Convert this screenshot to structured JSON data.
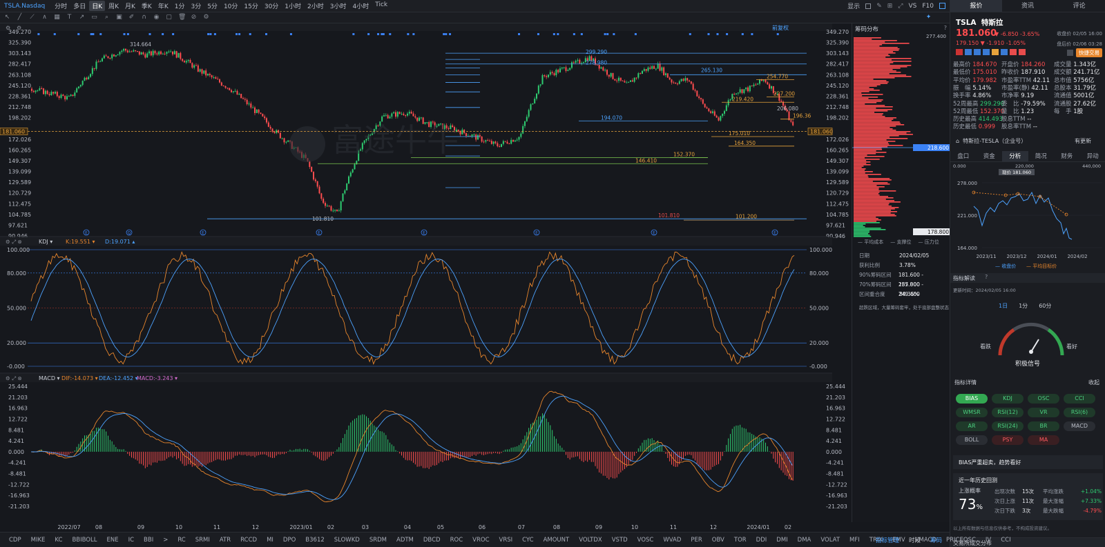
{
  "topbar": {
    "symbol": "TSLA.Nasdaq",
    "periods": [
      "分时",
      "多日",
      "日K",
      "周K",
      "月K",
      "季K",
      "年K",
      "1分",
      "3分",
      "5分",
      "10分",
      "15分",
      "30分",
      "1小时",
      "2小时",
      "3小时",
      "4小时",
      "Tick"
    ],
    "active_period": "日K",
    "right_items": [
      "显示",
      "VS",
      "F10"
    ]
  },
  "main_chart": {
    "adjust_label": "前复权",
    "y_ticks": [
      "349.270",
      "325.390",
      "303.143",
      "282.417",
      "263.108",
      "245.120",
      "228.361",
      "212.748",
      "198.202",
      "181.060",
      "172.026",
      "160.265",
      "149.307",
      "139.099",
      "129.589",
      "120.729",
      "112.475",
      "104.785",
      "97.621",
      "90.946"
    ],
    "current_price_tag": "181.060",
    "annotations": [
      "314.664",
      "101.810",
      "299.290",
      "278.980",
      "265.130",
      "254.770",
      "227.200",
      "219.420",
      "206.080",
      "196.36",
      "194.070",
      "175.010",
      "164.350",
      "152.370",
      "146.410",
      "101.810",
      "101.200"
    ],
    "watermark": "富途牛牛"
  },
  "kdj": {
    "name": "KDJ",
    "k_label": "K:19.551",
    "d_label": "D:19.071",
    "ticks": [
      "100.000",
      "80.000",
      "50.000",
      "20.000",
      "-0.000"
    ]
  },
  "macd": {
    "name": "MACD",
    "dif_label": "DIF:-14.073",
    "dea_label": "DEA:-12.452",
    "macd_label": "MACD:-3.243",
    "ticks": [
      "25.444",
      "21.203",
      "16.963",
      "12.722",
      "8.481",
      "4.241",
      "0.000",
      "-4.241",
      "-8.481",
      "-12.722",
      "-16.963",
      "-21.203"
    ]
  },
  "x_labels": [
    "2022/07",
    "08",
    "09",
    "10",
    "11",
    "12",
    "2023/01",
    "02",
    "03",
    "04",
    "05",
    "06",
    "07",
    "08",
    "09",
    "10",
    "11",
    "12",
    "2024/01",
    "02"
  ],
  "chip_dist": {
    "title": "筹码分布",
    "top_value": "277.400",
    "mid_tag": "218.600",
    "bottom_tag": "178.800",
    "legend": [
      "平均成本",
      "支撑位",
      "压力位"
    ],
    "rows": [
      {
        "k": "日期",
        "v": "2024/02/05"
      },
      {
        "k": "获利比例",
        "v": "3.78%"
      },
      {
        "k": "90%筹码区间",
        "v": "181.600 - 257.000"
      },
      {
        "k": "70%筹码区间",
        "v": "185.800 - 249.400"
      },
      {
        "k": "区间重合度",
        "v": "84.35%"
      }
    ],
    "note": "超跌区域，大量筹码套牢，处于底部盘整状态"
  },
  "right_panel": {
    "tabs": [
      "报价",
      "资讯",
      "评论"
    ],
    "ticker": "TSLA",
    "name": "特斯拉",
    "price": "181.060",
    "change": "-6.850",
    "change_pct": "-3.65%",
    "close_note": "收盘价 02/05 16:00",
    "after_price": "179.150",
    "after_change": "-1.910",
    "after_pct": "-1.05%",
    "after_note": "盘后价 02/06 03:28",
    "quick_trade": "快捷交易",
    "stats_left": [
      {
        "k": "最高价",
        "v": "184.670",
        "c": "red"
      },
      {
        "k": "最低价",
        "v": "175.010",
        "c": "red"
      },
      {
        "k": "平均价",
        "v": "179.982",
        "c": "red"
      },
      {
        "k": "振　幅",
        "v": "5.14%",
        "c": "white"
      },
      {
        "k": "换手率",
        "v": "4.86%",
        "c": "white"
      },
      {
        "k": "52周最高",
        "v": "299.290",
        "c": "green"
      },
      {
        "k": "52周最低",
        "v": "152.370",
        "c": "red"
      },
      {
        "k": "历史最高",
        "v": "414.493",
        "c": "green"
      },
      {
        "k": "历史最低",
        "v": "0.999",
        "c": "red"
      }
    ],
    "stats_mid": [
      {
        "k": "开盘价",
        "v": "184.260",
        "c": "red"
      },
      {
        "k": "昨收价",
        "v": "187.910",
        "c": "white"
      },
      {
        "k": "市盈率TTM",
        "v": "42.11",
        "c": "white"
      },
      {
        "k": "市盈率(静)",
        "v": "42.11",
        "c": "white"
      },
      {
        "k": "市净率",
        "v": "9.19",
        "c": "white"
      },
      {
        "k": "委　比",
        "v": "-79.59%",
        "c": "white"
      },
      {
        "k": "量　比",
        "v": "1.23",
        "c": "white"
      },
      {
        "k": "股息TTM",
        "v": "--",
        "c": "white"
      },
      {
        "k": "股息率TTM",
        "v": "--",
        "c": "white"
      }
    ],
    "stats_right": [
      {
        "k": "成交量",
        "v": "1.343亿"
      },
      {
        "k": "成交额",
        "v": "241.71亿"
      },
      {
        "k": "总市值",
        "v": "5756亿"
      },
      {
        "k": "总股本",
        "v": "31.79亿"
      },
      {
        "k": "流通值",
        "v": "5001亿"
      },
      {
        "k": "流通股",
        "v": "27.62亿"
      },
      {
        "k": "每　手",
        "v": "1股"
      }
    ],
    "company": "特斯拉-TESLA（企业号）",
    "company_update": "有更新",
    "subtabs": [
      "盘口",
      "资金",
      "分析",
      "简况",
      "财务",
      "异动"
    ],
    "analysis_chart": {
      "top_ticks": [
        "0.000",
        "220,000",
        "440,000"
      ],
      "now_label": "现价 181.060",
      "y_ticks": [
        "278.000",
        "221.000",
        "164.000"
      ],
      "x_ticks": [
        "2023/11",
        "2023/12",
        "2024/01",
        "2024/02"
      ],
      "legend": [
        "收盘价",
        "平均目标价"
      ]
    },
    "indicator_title": "指标解读",
    "update_time": "更新时间：2024/02/05 16:00",
    "periods": [
      "1日",
      "1分",
      "60分"
    ],
    "gauge_left": "看跌",
    "gauge_right": "看好",
    "signal": "积极信号",
    "detail_title": "指标详情",
    "collapse": "收起",
    "indicators": [
      [
        "BIAS",
        "KDJ",
        "OSC",
        "CCI"
      ],
      [
        "WMSR",
        "RSI(12)",
        "VR",
        "RSI(6)"
      ],
      [
        "AR",
        "RSI(24)",
        "BR",
        "MACD"
      ],
      [
        "BOLL",
        "PSY",
        "MA",
        ""
      ]
    ],
    "bias_note": "BIAS严重超卖，趋势看好",
    "backtest_title": "近一年历史回测",
    "up_prob_label": "上涨概率",
    "up_prob": "73",
    "backtest_rows": [
      {
        "k": "出现次数",
        "v": "15次",
        "k2": "平均涨跌",
        "v2": "+1.04%"
      },
      {
        "k": "次日上涨",
        "v": "11次",
        "k2": "最大涨幅",
        "v2": "+7.33%"
      },
      {
        "k": "次日下跌",
        "v": "3次",
        "k2": "最大跌幅",
        "v2": "-4.79%"
      }
    ],
    "disclaimer": "以上所有数据与信息仅供参考，不构成投资建议。",
    "bottom_section": "交易所成交分布"
  },
  "bottombar": [
    "CDP",
    "MIKE",
    "KC",
    "BBIBOLL",
    "ENE",
    "IC",
    "BBI",
    ">",
    "RC",
    "SRMI",
    "ATR",
    "RCCD",
    "MI",
    "DPO",
    "B3612",
    "SLOWKD",
    "SRDM",
    "ADTM",
    "DBCD",
    "ROC",
    "VROC",
    "VRSI",
    "CYC",
    "AMOUNT",
    "VOLTDX",
    "VSTD",
    "VOSC",
    "WVAD",
    "PER",
    "OBV",
    "TOR",
    "DDI",
    "DMI",
    "DMA",
    "VOLAT",
    "MFI",
    "TRIX",
    "EMV",
    "VMACD",
    "PRICEOSC",
    "IV",
    "CCI"
  ],
  "bottombar_right": [
    "指标管理",
    "时段",
    "筹码"
  ]
}
